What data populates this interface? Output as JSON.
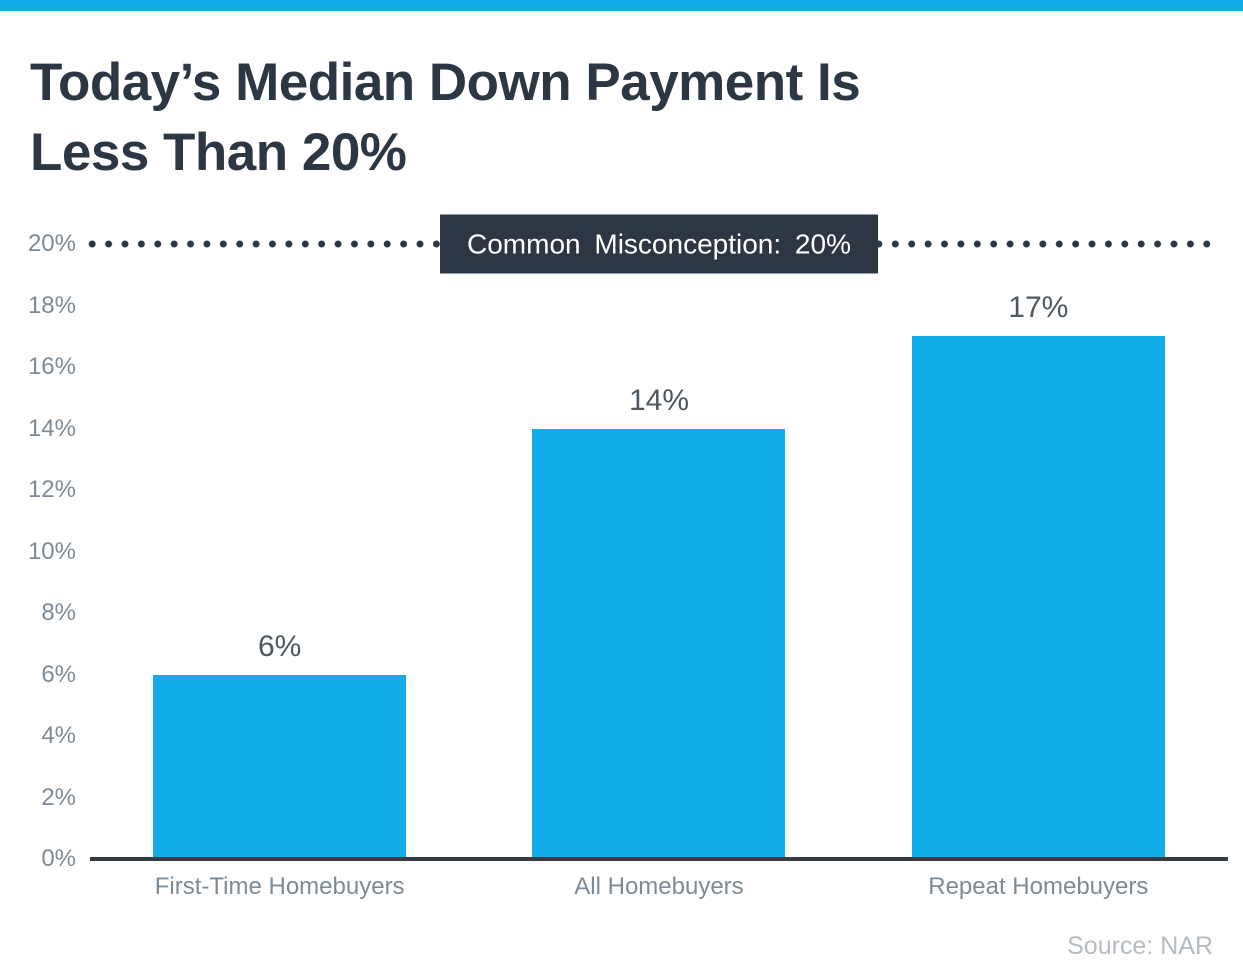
{
  "page": {
    "title_lines": [
      "Today’s Median Down Payment Is",
      "Less Than 20%"
    ],
    "source": "Source: NAR"
  },
  "annotation": {
    "label": "Common Misconception: 20%"
  },
  "colors": {
    "accent_bar": "#12ACE8",
    "dark_slate": "#2D3743",
    "axis_line": "#343B41",
    "tick_gray": "#7E8B96",
    "value_gray": "#4E5861",
    "source_gray": "#B4BBC1"
  },
  "chart_data": {
    "type": "bar",
    "title": "Today’s Median Down Payment Is Less Than 20%",
    "categories": [
      "First-Time Homebuyers",
      "All Homebuyers",
      "Repeat Homebuyers"
    ],
    "values": [
      6,
      14,
      17
    ],
    "value_labels": [
      "6%",
      "14%",
      "17%"
    ],
    "xlabel": "",
    "ylabel": "",
    "ylim": [
      0,
      20
    ],
    "ytick_step": 2,
    "ytick_labels": [
      "0%",
      "2%",
      "4%",
      "6%",
      "8%",
      "10%",
      "12%",
      "14%",
      "16%",
      "18%",
      "20%"
    ],
    "grid": false,
    "legend": false,
    "reference_line": {
      "value": 20,
      "style": "dotted",
      "label": "Common Misconception: 20%"
    },
    "source": "Source: NAR"
  }
}
